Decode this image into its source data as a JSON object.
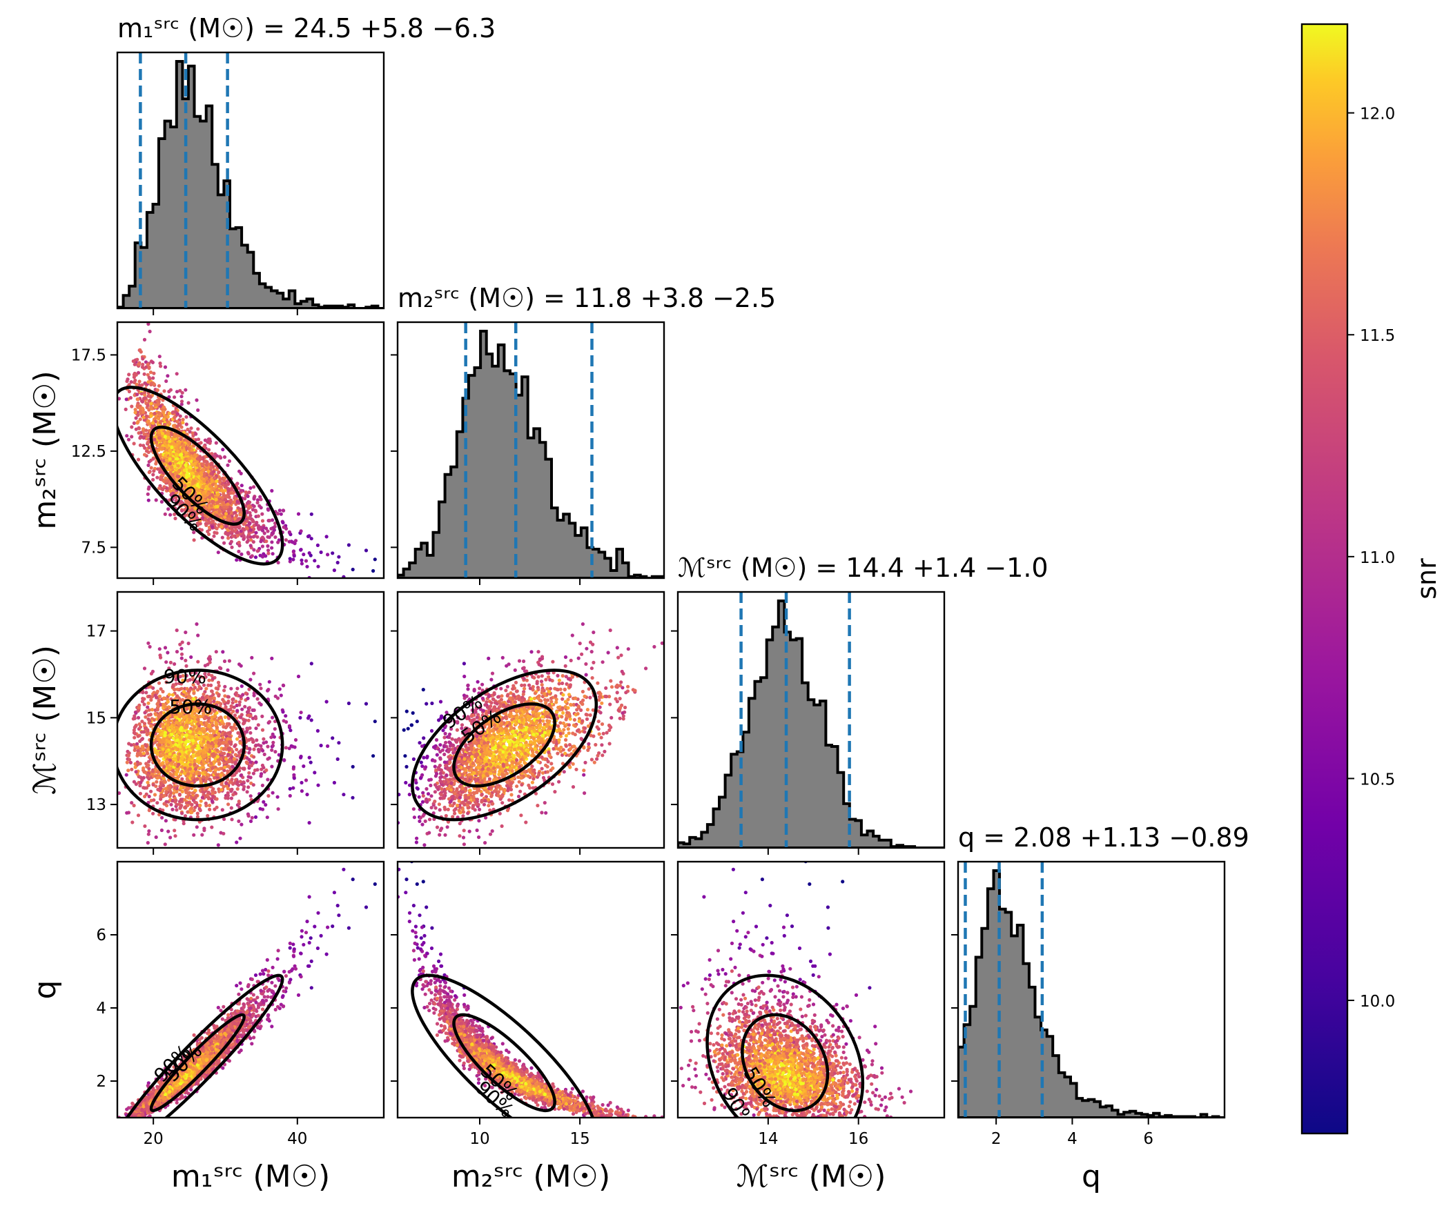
{
  "chart_data": {
    "type": "scatter",
    "subtype": "corner-plot",
    "parameters": [
      {
        "key": "m1",
        "label": "m₁ˢʳᶜ (M☉)",
        "title": "m₁ˢʳᶜ (M☉) = 24.5 +5.8 −6.3",
        "median": 24.5,
        "lower": 18.2,
        "upper": 30.3,
        "range": [
          15,
          52
        ],
        "ticks": [
          20,
          40
        ]
      },
      {
        "key": "m2",
        "label": "m₂ˢʳᶜ (M☉)",
        "title": "m₂ˢʳᶜ (M☉) = 11.8 +3.8 −2.5",
        "median": 11.8,
        "lower": 9.3,
        "upper": 15.6,
        "range": [
          5.9,
          19.2
        ],
        "ticks": [
          10,
          15
        ]
      },
      {
        "key": "mc",
        "label": "ℳˢʳᶜ (M☉)",
        "title": "ℳˢʳᶜ (M☉) = 14.4 +1.4 −1.0",
        "median": 14.4,
        "lower": 13.4,
        "upper": 15.8,
        "range": [
          12.0,
          17.9
        ],
        "ticks": [
          14,
          16
        ]
      },
      {
        "key": "q",
        "label": "q",
        "title": "q = 2.08 +1.13 −0.89",
        "median": 2.08,
        "lower": 1.19,
        "upper": 3.21,
        "range": [
          1.0,
          8.0
        ],
        "ticks": [
          2,
          4,
          6
        ]
      }
    ],
    "y_ticks": {
      "m2": [
        "17.5",
        "12.5",
        "7.5"
      ],
      "mc": [
        "17",
        "15",
        "13"
      ],
      "q": [
        "6",
        "4",
        "2"
      ]
    },
    "contour_levels": [
      "50%",
      "90%"
    ],
    "colorbar": {
      "label": "snr",
      "min": 9.7,
      "max": 12.2,
      "ticks": [
        "12.0",
        "11.5",
        "11.0",
        "10.5",
        "10.0"
      ],
      "colormap": "plasma"
    },
    "samples_note": "scatter points are drawn from a correlated posterior distribution",
    "colors": {
      "histogram_fill": "#808080",
      "histogram_edge": "#000000",
      "quantile_line": "#1f77b4",
      "contour": "#000000"
    }
  }
}
